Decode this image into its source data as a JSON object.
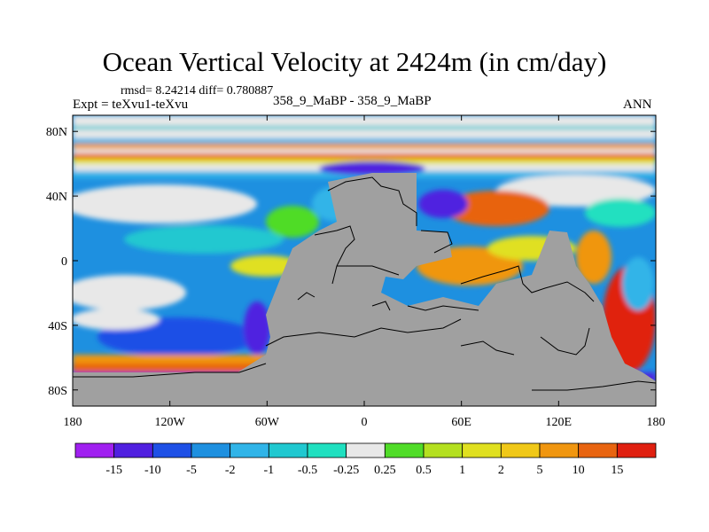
{
  "title": "Ocean Vertical Velocity at 2424m (in cm/day)",
  "stats": "rmsd= 8.24214 diff= 0.780887",
  "expt": "Expt = teXvu1-teXvu",
  "case": "358_9_MaBP - 358_9_MaBP",
  "season": "ANN",
  "lat_ticks": [
    "80N",
    "40N",
    "0",
    "40S",
    "80S"
  ],
  "lat_values": [
    80,
    40,
    0,
    -40,
    -80
  ],
  "lon_ticks": [
    "180",
    "120W",
    "60W",
    "0",
    "60E",
    "120E",
    "180"
  ],
  "lon_values": [
    -180,
    -120,
    -60,
    0,
    60,
    120,
    180
  ],
  "colorbar": {
    "labels": [
      "-15",
      "-10",
      "-5",
      "-2",
      "-1",
      "-0.5",
      "-0.25",
      "0.25",
      "0.5",
      "1",
      "2",
      "5",
      "10",
      "15"
    ],
    "colors": [
      "#a020f0",
      "#5020e0",
      "#1e50e6",
      "#1e90e0",
      "#30b4e8",
      "#20c8d0",
      "#20e0c0",
      "#e8e8e8",
      "#50dc28",
      "#b4e020",
      "#e0e020",
      "#f0c818",
      "#f09610",
      "#e86410",
      "#e02010"
    ]
  },
  "land_color": "#a0a0a0",
  "map": {
    "lon_range": [
      -180,
      180
    ],
    "lat_range": [
      -90,
      90
    ]
  }
}
